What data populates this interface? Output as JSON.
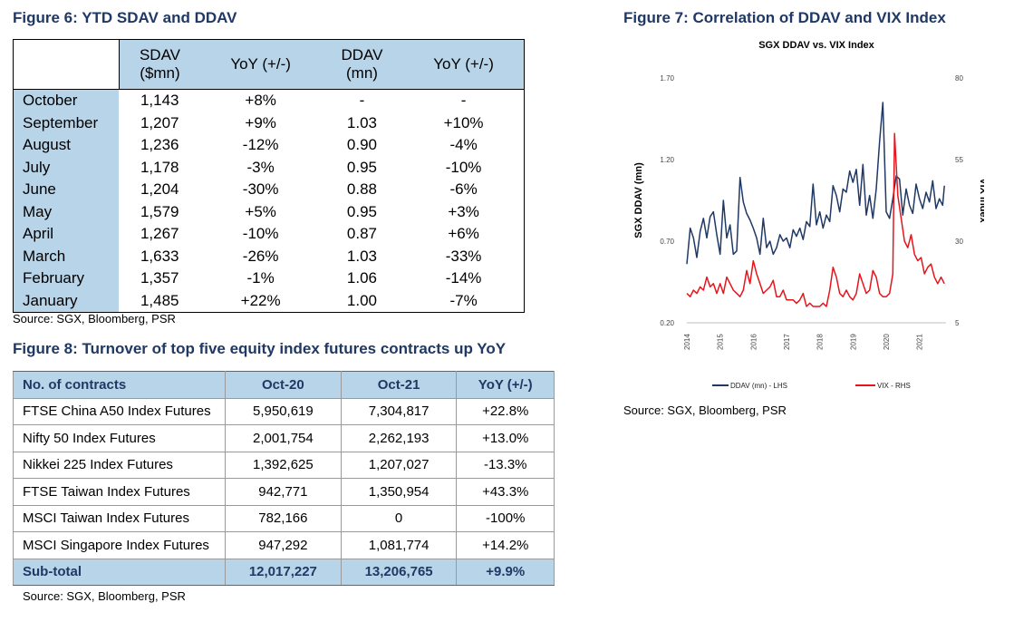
{
  "figure6": {
    "title": "Figure 6: YTD SDAV and DDAV",
    "headers": {
      "month": "",
      "sdav_line1": "SDAV",
      "sdav_line2": "($mn)",
      "yoy1": "YoY (+/-)",
      "ddav_line1": "DDAV",
      "ddav_line2": "(mn)",
      "yoy2": "YoY (+/-)"
    },
    "rows": [
      [
        "October",
        "1,143",
        "+8%",
        "-",
        "-"
      ],
      [
        "September",
        "1,207",
        "+9%",
        "1.03",
        "+10%"
      ],
      [
        "August",
        "1,236",
        "-12%",
        "0.90",
        "-4%"
      ],
      [
        "July",
        "1,178",
        "-3%",
        "0.95",
        "-10%"
      ],
      [
        "June",
        "1,204",
        "-30%",
        "0.88",
        "-6%"
      ],
      [
        "May",
        "1,579",
        "+5%",
        "0.95",
        "+3%"
      ],
      [
        "April",
        "1,267",
        "-10%",
        "0.87",
        "+6%"
      ],
      [
        "March",
        "1,633",
        "-26%",
        "1.03",
        "-33%"
      ],
      [
        "February",
        "1,357",
        "-1%",
        "1.06",
        "-14%"
      ],
      [
        "January",
        "1,485",
        "+22%",
        "1.00",
        "-7%"
      ]
    ],
    "source": "Source: SGX, Bloomberg, PSR"
  },
  "figure8": {
    "title": "Figure 8: Turnover of top five equity index futures contracts up YoY",
    "headers": [
      "No. of contracts",
      "Oct-20",
      "Oct-21",
      "YoY (+/-)"
    ],
    "rows": [
      [
        "FTSE China A50 Index Futures",
        "5,950,619",
        "7,304,817",
        "+22.8%"
      ],
      [
        "Nifty 50 Index Futures",
        "2,001,754",
        "2,262,193",
        "+13.0%"
      ],
      [
        "Nikkei 225 Index Futures",
        "1,392,625",
        "1,207,027",
        "-13.3%"
      ],
      [
        "FTSE Taiwan Index Futures",
        "942,771",
        "1,350,954",
        "+43.3%"
      ],
      [
        "MSCI Taiwan Index Futures",
        "782,166",
        "0",
        "-100%"
      ],
      [
        "MSCI Singapore Index Futures",
        "947,292",
        "1,081,774",
        "+14.2%"
      ]
    ],
    "footer": [
      "Sub-total",
      "12,017,227",
      "13,206,765",
      "+9.9%"
    ],
    "source": "Source: SGX, Bloomberg, PSR"
  },
  "figure7": {
    "title": "Figure 7: Correlation of DDAV and VIX Index",
    "source": "Source: SGX, Bloomberg, PSR"
  },
  "chart_data": {
    "type": "line",
    "title": "SGX DDAV vs. VIX Index",
    "ylabel": "SGX DDAV (mn)",
    "y2label": "VIX Index",
    "ylim": [
      0.2,
      1.7
    ],
    "y2lim": [
      5,
      80
    ],
    "yticks": [
      "0.20",
      "0.70",
      "1.20",
      "1.70"
    ],
    "y2ticks": [
      "5",
      "30",
      "55",
      "80"
    ],
    "xlim": [
      2014.0,
      2021.8
    ],
    "xticks": [
      "2014",
      "2015",
      "2016",
      "2017",
      "2018",
      "2019",
      "2020",
      "2021"
    ],
    "legend_position": "bottom",
    "colors": {
      "ddav": "#1f3864",
      "vix": "#e8141c"
    },
    "series": [
      {
        "name": "DDAV (mn) - LHS",
        "axis": "left",
        "x": [
          2014.0,
          2014.1,
          2014.2,
          2014.3,
          2014.4,
          2014.5,
          2014.6,
          2014.7,
          2014.8,
          2014.9,
          2015.0,
          2015.1,
          2015.2,
          2015.3,
          2015.4,
          2015.5,
          2015.6,
          2015.7,
          2015.8,
          2015.9,
          2016.0,
          2016.1,
          2016.2,
          2016.3,
          2016.4,
          2016.5,
          2016.6,
          2016.7,
          2016.8,
          2016.9,
          2017.0,
          2017.1,
          2017.2,
          2017.3,
          2017.4,
          2017.5,
          2017.6,
          2017.7,
          2017.8,
          2017.9,
          2018.0,
          2018.1,
          2018.2,
          2018.3,
          2018.4,
          2018.5,
          2018.6,
          2018.7,
          2018.8,
          2018.9,
          2019.0,
          2019.1,
          2019.2,
          2019.3,
          2019.4,
          2019.5,
          2019.6,
          2019.7,
          2019.8,
          2019.9,
          2020.0,
          2020.1,
          2020.2,
          2020.3,
          2020.4,
          2020.5,
          2020.6,
          2020.7,
          2020.8,
          2020.9,
          2021.0,
          2021.1,
          2021.2,
          2021.3,
          2021.4,
          2021.5,
          2021.6,
          2021.7,
          2021.75
        ],
        "y": [
          0.56,
          0.78,
          0.72,
          0.6,
          0.76,
          0.84,
          0.72,
          0.85,
          0.88,
          0.74,
          0.62,
          0.95,
          0.72,
          0.8,
          0.62,
          0.64,
          1.09,
          0.94,
          0.87,
          0.83,
          0.78,
          0.72,
          0.62,
          0.84,
          0.66,
          0.7,
          0.62,
          0.66,
          0.74,
          0.7,
          0.72,
          0.66,
          0.77,
          0.73,
          0.78,
          0.71,
          0.82,
          0.79,
          1.05,
          0.8,
          0.88,
          0.78,
          0.86,
          0.82,
          1.04,
          0.98,
          0.88,
          1.02,
          1.0,
          1.13,
          1.06,
          1.14,
          0.92,
          1.17,
          0.86,
          0.98,
          0.84,
          1.02,
          1.31,
          1.55,
          0.88,
          0.84,
          0.96,
          1.1,
          1.08,
          0.86,
          1.02,
          0.92,
          0.87,
          1.05,
          0.96,
          0.9,
          1.0,
          0.94,
          1.07,
          0.9,
          0.96,
          0.92,
          1.04
        ]
      },
      {
        "name": "VIX - RHS",
        "axis": "right",
        "x": [
          2014.0,
          2014.1,
          2014.2,
          2014.3,
          2014.4,
          2014.5,
          2014.6,
          2014.7,
          2014.8,
          2014.9,
          2015.0,
          2015.1,
          2015.2,
          2015.3,
          2015.4,
          2015.5,
          2015.6,
          2015.7,
          2015.8,
          2015.9,
          2016.0,
          2016.1,
          2016.2,
          2016.3,
          2016.4,
          2016.5,
          2016.6,
          2016.7,
          2016.8,
          2016.9,
          2017.0,
          2017.1,
          2017.2,
          2017.3,
          2017.4,
          2017.5,
          2017.6,
          2017.7,
          2017.8,
          2017.9,
          2018.0,
          2018.1,
          2018.2,
          2018.3,
          2018.4,
          2018.5,
          2018.6,
          2018.7,
          2018.8,
          2018.9,
          2019.0,
          2019.1,
          2019.2,
          2019.3,
          2019.4,
          2019.5,
          2019.6,
          2019.7,
          2019.8,
          2019.9,
          2020.0,
          2020.1,
          2020.2,
          2020.25,
          2020.35,
          2020.45,
          2020.55,
          2020.65,
          2020.75,
          2020.85,
          2020.95,
          2021.05,
          2021.15,
          2021.25,
          2021.35,
          2021.45,
          2021.55,
          2021.65,
          2021.75
        ],
        "y": [
          14,
          13,
          15,
          14,
          16,
          15,
          19,
          16,
          17,
          14,
          17,
          14,
          19,
          17,
          15,
          14,
          13,
          15,
          21,
          17,
          24,
          20,
          17,
          14,
          15,
          16,
          18,
          13,
          13,
          15,
          12,
          12,
          12,
          11,
          12,
          14,
          10,
          11,
          10,
          10,
          10,
          11,
          10,
          15,
          22,
          19,
          14,
          13,
          15,
          13,
          12,
          14,
          20,
          17,
          14,
          15,
          21,
          19,
          14,
          13,
          13,
          14,
          20,
          63,
          44,
          37,
          30,
          28,
          32,
          26,
          24,
          25,
          20,
          22,
          23,
          19,
          17,
          19,
          17
        ]
      }
    ]
  }
}
